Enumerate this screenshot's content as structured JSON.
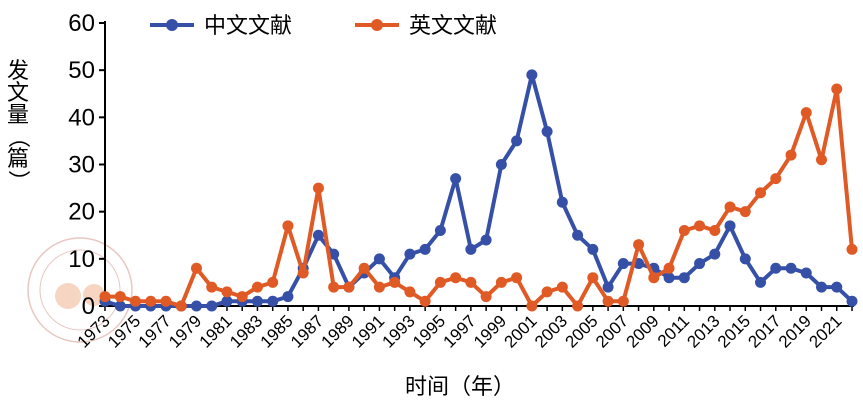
{
  "chart_data": {
    "type": "line",
    "xlabel": "时间（年）",
    "ylabel": "发文量（篇）",
    "ylim": [
      0,
      60
    ],
    "yticks": [
      "0",
      "10",
      "20",
      "30",
      "40",
      "50",
      "60"
    ],
    "x": [
      1973,
      1974,
      1975,
      1976,
      1977,
      1978,
      1979,
      1980,
      1981,
      1982,
      1983,
      1984,
      1985,
      1986,
      1987,
      1988,
      1989,
      1990,
      1991,
      1992,
      1993,
      1994,
      1995,
      1996,
      1997,
      1998,
      1999,
      2000,
      2001,
      2002,
      2003,
      2004,
      2005,
      2006,
      2007,
      2008,
      2009,
      2010,
      2011,
      2012,
      2013,
      2014,
      2015,
      2016,
      2017,
      2018,
      2019,
      2020,
      2021,
      2022
    ],
    "xticklabels": [
      "1973",
      "1975",
      "1977",
      "1979",
      "1981",
      "1983",
      "1985",
      "1987",
      "1989",
      "1991",
      "1993",
      "1995",
      "1997",
      "1999",
      "2001",
      "2003",
      "2005",
      "2007",
      "2009",
      "2011",
      "2013",
      "2015",
      "2017",
      "2019",
      "2021"
    ],
    "legend_position": "top",
    "series": [
      {
        "name": "中文文献",
        "color": "#3550a6",
        "values": [
          1,
          0,
          0,
          0,
          0,
          0,
          0,
          0,
          1,
          1,
          1,
          1,
          2,
          8,
          15,
          11,
          4,
          7,
          10,
          6,
          11,
          12,
          16,
          27,
          12,
          14,
          30,
          35,
          49,
          37,
          22,
          15,
          12,
          4,
          9,
          9,
          8,
          6,
          6,
          9,
          11,
          17,
          10,
          5,
          8,
          8,
          7,
          4,
          4,
          1
        ]
      },
      {
        "name": "英文文献",
        "color": "#e05a25",
        "values": [
          2,
          2,
          1,
          1,
          1,
          0,
          8,
          4,
          3,
          2,
          4,
          5,
          17,
          7,
          25,
          4,
          4,
          8,
          4,
          5,
          3,
          1,
          5,
          6,
          5,
          2,
          5,
          6,
          0,
          3,
          4,
          0,
          6,
          1,
          1,
          13,
          6,
          8,
          16,
          17,
          16,
          21,
          20,
          24,
          27,
          32,
          41,
          31,
          46,
          12
        ]
      }
    ]
  }
}
